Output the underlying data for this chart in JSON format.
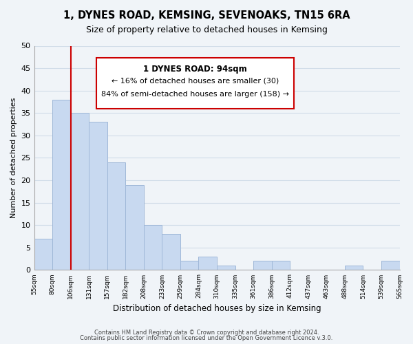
{
  "title": "1, DYNES ROAD, KEMSING, SEVENOAKS, TN15 6RA",
  "subtitle": "Size of property relative to detached houses in Kemsing",
  "xlabel": "Distribution of detached houses by size in Kemsing",
  "ylabel": "Number of detached properties",
  "bar_color": "#c8d9f0",
  "bar_edge_color": "#a0b8d8",
  "tick_labels": [
    "55sqm",
    "80sqm",
    "106sqm",
    "131sqm",
    "157sqm",
    "182sqm",
    "208sqm",
    "233sqm",
    "259sqm",
    "284sqm",
    "310sqm",
    "335sqm",
    "361sqm",
    "386sqm",
    "412sqm",
    "437sqm",
    "463sqm",
    "488sqm",
    "514sqm",
    "539sqm",
    "565sqm"
  ],
  "values": [
    7,
    38,
    35,
    33,
    24,
    19,
    10,
    8,
    2,
    3,
    1,
    0,
    2,
    2,
    0,
    0,
    0,
    1,
    0,
    2
  ],
  "ylim": [
    0,
    50
  ],
  "yticks": [
    0,
    5,
    10,
    15,
    20,
    25,
    30,
    35,
    40,
    45,
    50
  ],
  "marker_color": "#cc0000",
  "annotation_title": "1 DYNES ROAD: 94sqm",
  "annotation_line1": "← 16% of detached houses are smaller (30)",
  "annotation_line2": "84% of semi-detached houses are larger (158) →",
  "footer1": "Contains HM Land Registry data © Crown copyright and database right 2024.",
  "footer2": "Contains public sector information licensed under the Open Government Licence v.3.0.",
  "grid_color": "#d0dce8",
  "background_color": "#f0f4f8"
}
